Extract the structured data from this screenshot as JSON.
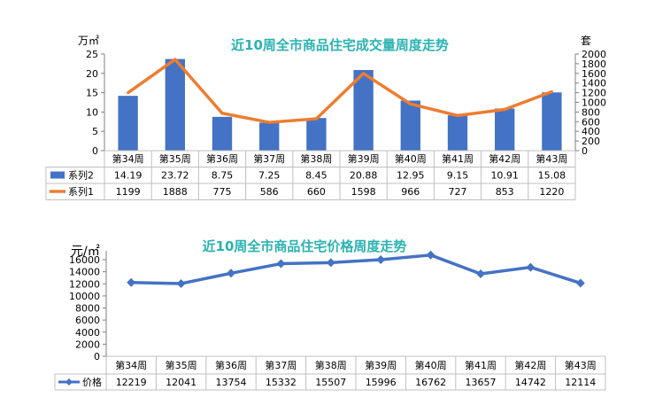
{
  "chart_data": [
    {
      "type": "bar",
      "title": "近10周全市商品住宅成交量周度走势",
      "left_unit": "万㎡",
      "right_unit": "套",
      "categories": [
        "第34周",
        "第35周",
        "第36周",
        "第37周",
        "第38周",
        "第39周",
        "第40周",
        "第41周",
        "第42周",
        "第43周"
      ],
      "left_axis": {
        "min": 0,
        "max": 25,
        "step": 5,
        "ticks": [
          "0",
          "5",
          "10",
          "15",
          "20",
          "25"
        ]
      },
      "right_axis": {
        "min": 0,
        "max": 2000,
        "step": 200,
        "ticks": [
          "0",
          "200",
          "400",
          "600",
          "800",
          "1000",
          "1200",
          "1400",
          "1600",
          "1800",
          "2000"
        ]
      },
      "grid": false,
      "series": [
        {
          "name": "系列2",
          "type": "bar",
          "axis": "left",
          "color": "#4472C4",
          "values": [
            14.19,
            23.72,
            8.75,
            7.25,
            8.45,
            20.88,
            12.95,
            9.15,
            10.91,
            15.08
          ],
          "labels": [
            "14.19",
            "23.72",
            "8.75",
            "7.25",
            "8.45",
            "20.88",
            "12.95",
            "9.15",
            "10.91",
            "15.08"
          ]
        },
        {
          "name": "系列1",
          "type": "line",
          "axis": "right",
          "color": "#ED7D31",
          "values": [
            1199,
            1888,
            775,
            586,
            660,
            1598,
            966,
            727,
            853,
            1220
          ],
          "labels": [
            "1199",
            "1888",
            "775",
            "586",
            "660",
            "1598",
            "966",
            "727",
            "853",
            "1220"
          ]
        }
      ]
    },
    {
      "type": "line",
      "title": "近10周全市商品住宅价格周度走势",
      "left_unit": "元/㎡",
      "categories": [
        "第34周",
        "第35周",
        "第36周",
        "第37周",
        "第38周",
        "第39周",
        "第40周",
        "第41周",
        "第42周",
        "第43周"
      ],
      "left_axis": {
        "min": 0,
        "max": 16000,
        "step": 2000,
        "ticks": [
          "0",
          "2000",
          "4000",
          "6000",
          "8000",
          "10000",
          "12000",
          "14000",
          "16000"
        ]
      },
      "grid": false,
      "series": [
        {
          "name": "价格",
          "type": "line",
          "color": "#4472C4",
          "values": [
            12219,
            12041,
            13754,
            15332,
            15507,
            15996,
            16762,
            13657,
            14742,
            12114
          ],
          "labels": [
            "12219",
            "12041",
            "13754",
            "15332",
            "15507",
            "15996",
            "16762",
            "13657",
            "14742",
            "12114"
          ]
        }
      ]
    }
  ],
  "colors": {
    "title": "#2BB3B1",
    "axis": "#7F7F7F",
    "table_border": "#BFBFBF",
    "text": "#000000"
  }
}
